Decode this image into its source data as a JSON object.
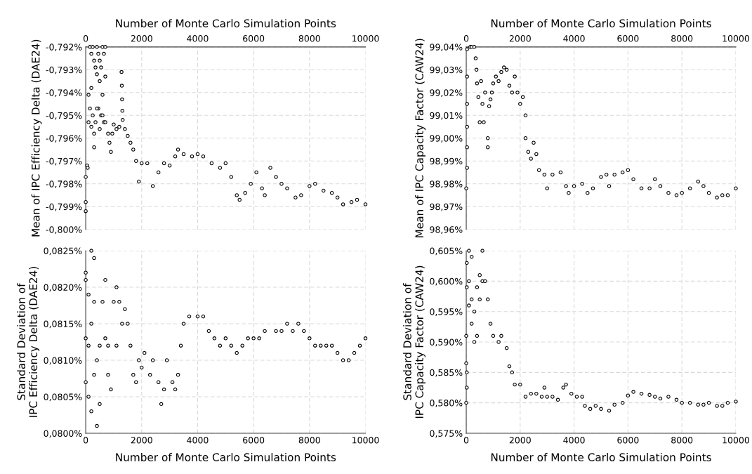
{
  "chart_data": [
    {
      "type": "scatter",
      "ylabel": "Mean of IPC Efficiency Delta (DAE24)",
      "xlabel": "Number of Monte Carlo Simulation Points",
      "xlim": [
        0,
        10000
      ],
      "xticks": [
        0,
        2000,
        4000,
        6000,
        8000,
        10000
      ],
      "ylim": [
        -0.8,
        -0.792
      ],
      "yticks": [
        {
          "value": -0.8,
          "label": "-0,800%"
        },
        {
          "value": -0.799,
          "label": "-0,799%"
        },
        {
          "value": -0.798,
          "label": "-0,798%"
        },
        {
          "value": -0.797,
          "label": "-0,797%"
        },
        {
          "value": -0.796,
          "label": "-0,796%"
        },
        {
          "value": -0.795,
          "label": "-0,795%"
        },
        {
          "value": -0.794,
          "label": "-0,794%"
        },
        {
          "value": -0.793,
          "label": "-0,793%"
        },
        {
          "value": -0.792,
          "label": "-0,792%"
        }
      ],
      "grid": true,
      "marker": "circle",
      "series": [
        {
          "color": "#000000",
          "x": [
            0,
            0,
            0,
            50,
            70,
            100,
            150,
            200,
            250,
            300,
            350,
            400,
            450,
            500,
            550,
            600,
            650,
            700,
            150,
            250,
            350,
            450,
            550,
            650,
            100,
            200,
            300,
            400,
            500,
            600,
            700,
            200,
            300,
            400,
            500,
            600,
            700,
            800,
            850,
            900,
            950,
            1000,
            1100,
            1200,
            1280,
            1290,
            1300,
            1310,
            1320,
            1400,
            1500,
            1600,
            1700,
            1800,
            1900,
            2000,
            2200,
            2400,
            2600,
            2800,
            3000,
            3200,
            3300,
            3500,
            3800,
            4000,
            4200,
            4500,
            4800,
            5000,
            5200,
            5400,
            5500,
            5700,
            5900,
            6100,
            6300,
            6400,
            6600,
            6800,
            7000,
            7200,
            7500,
            7700,
            8000,
            8200,
            8500,
            8800,
            9000,
            9200,
            9500,
            9700,
            10000
          ],
          "values": [
            -0.7988,
            -0.7992,
            -0.7977,
            -0.7972,
            -0.7973,
            -0.7953,
            -0.792,
            -0.7923,
            -0.792,
            -0.7926,
            -0.7929,
            -0.792,
            -0.7923,
            -0.7926,
            -0.7929,
            -0.792,
            -0.7923,
            -0.792,
            -0.7947,
            -0.795,
            -0.7953,
            -0.7947,
            -0.795,
            -0.7953,
            -0.7941,
            -0.7938,
            -0.7964,
            -0.7932,
            -0.7935,
            -0.7941,
            -0.7933,
            -0.7955,
            -0.7958,
            -0.7947,
            -0.7956,
            -0.795,
            -0.7953,
            -0.7958,
            -0.7962,
            -0.7966,
            -0.7958,
            -0.7954,
            -0.7956,
            -0.7955,
            -0.7931,
            -0.7937,
            -0.7943,
            -0.7948,
            -0.7952,
            -0.7956,
            -0.7959,
            -0.7962,
            -0.7965,
            -0.797,
            -0.7979,
            -0.7971,
            -0.7971,
            -0.7981,
            -0.7975,
            -0.7971,
            -0.7972,
            -0.7968,
            -0.7965,
            -0.7967,
            -0.7968,
            -0.7967,
            -0.7968,
            -0.7971,
            -0.7973,
            -0.7971,
            -0.7977,
            -0.7985,
            -0.7987,
            -0.7984,
            -0.798,
            -0.7975,
            -0.7982,
            -0.7985,
            -0.7973,
            -0.7977,
            -0.798,
            -0.7982,
            -0.7986,
            -0.7985,
            -0.7981,
            -0.798,
            -0.7983,
            -0.7984,
            -0.7986,
            -0.7989,
            -0.7988,
            -0.7987,
            -0.7989
          ]
        }
      ]
    },
    {
      "type": "scatter",
      "ylabel": "Mean of IPC Capacity Factor (CAW24)",
      "xlabel": "Number of Monte Carlo Simulation Points",
      "xlim": [
        0,
        10000
      ],
      "xticks": [
        0,
        2000,
        4000,
        6000,
        8000,
        10000
      ],
      "ylim": [
        98.96,
        99.04
      ],
      "yticks": [
        {
          "value": 98.96,
          "label": "98,96%"
        },
        {
          "value": 98.97,
          "label": "98,97%"
        },
        {
          "value": 98.98,
          "label": "98,98%"
        },
        {
          "value": 98.99,
          "label": "98,99%"
        },
        {
          "value": 99.0,
          "label": "99,00%"
        },
        {
          "value": 99.01,
          "label": "99,01%"
        },
        {
          "value": 99.02,
          "label": "99,02%"
        },
        {
          "value": 99.03,
          "label": "99,03%"
        },
        {
          "value": 99.04,
          "label": "99,04%"
        }
      ],
      "grid": true,
      "marker": "circle",
      "series": [
        {
          "color": "#000000",
          "x": [
            0,
            30,
            30,
            30,
            30,
            30,
            30,
            150,
            200,
            300,
            350,
            380,
            400,
            450,
            500,
            550,
            600,
            650,
            700,
            800,
            800,
            850,
            900,
            950,
            1000,
            1100,
            1200,
            1300,
            1400,
            1500,
            1600,
            1700,
            1800,
            1900,
            2000,
            2100,
            2200,
            2200,
            2300,
            2400,
            2500,
            2600,
            2700,
            2900,
            3000,
            3200,
            3500,
            3700,
            3800,
            4000,
            4300,
            4500,
            4700,
            5000,
            5200,
            5300,
            5500,
            5800,
            6000,
            6200,
            6500,
            6800,
            7000,
            7200,
            7500,
            7800,
            8000,
            8300,
            8600,
            8800,
            9000,
            9300,
            9500,
            9700,
            10000
          ],
          "values": [
            98.978,
            99.039,
            99.027,
            99.015,
            99.005,
            98.996,
            98.987,
            99.04,
            99.04,
            99.04,
            99.035,
            99.03,
            99.024,
            99.018,
            99.007,
            99.025,
            99.015,
            99.007,
            99.02,
            99.0,
            98.996,
            99.014,
            99.017,
            99.02,
            99.024,
            99.027,
            99.025,
            99.029,
            99.031,
            99.03,
            99.023,
            99.02,
            99.027,
            99.02,
            99.015,
            99.018,
            99.01,
            99.0,
            98.994,
            98.991,
            98.998,
            98.993,
            98.986,
            98.984,
            98.978,
            98.984,
            98.985,
            98.979,
            98.976,
            98.979,
            98.98,
            98.976,
            98.978,
            98.983,
            98.984,
            98.979,
            98.984,
            98.985,
            98.986,
            98.982,
            98.978,
            98.978,
            98.982,
            98.979,
            98.976,
            98.975,
            98.976,
            98.978,
            98.981,
            98.979,
            98.976,
            98.974,
            98.975,
            98.975,
            98.978
          ]
        }
      ]
    },
    {
      "type": "scatter",
      "ylabel": "Standard Deviation of\nIPC Efficiency Delta (DAE24)",
      "xlabel": "Number of Monte Carlo Simulation Points",
      "xlim": [
        0,
        10000
      ],
      "xticks": [
        0,
        2000,
        4000,
        6000,
        8000,
        10000
      ],
      "ylim": [
        0.08,
        0.0825
      ],
      "yticks": [
        {
          "value": 0.08,
          "label": "0,0800%"
        },
        {
          "value": 0.0805,
          "label": "0,0805%"
        },
        {
          "value": 0.081,
          "label": "0,0810%"
        },
        {
          "value": 0.0815,
          "label": "0,0815%"
        },
        {
          "value": 0.082,
          "label": "0,0820%"
        },
        {
          "value": 0.0825,
          "label": "0,0825%"
        }
      ],
      "grid": true,
      "marker": "circle",
      "series": [
        {
          "color": "#000000",
          "x": [
            0,
            0,
            0,
            0,
            100,
            100,
            100,
            200,
            200,
            200,
            300,
            300,
            300,
            400,
            400,
            500,
            500,
            600,
            700,
            700,
            800,
            800,
            900,
            1000,
            1100,
            1100,
            1200,
            1300,
            1400,
            1500,
            1600,
            1700,
            1800,
            1900,
            2000,
            2100,
            2300,
            2400,
            2600,
            2700,
            2800,
            2900,
            3100,
            3200,
            3300,
            3400,
            3500,
            3700,
            4000,
            4200,
            4400,
            4600,
            4800,
            5000,
            5200,
            5400,
            5600,
            5800,
            6000,
            6200,
            6400,
            6800,
            7000,
            7200,
            7400,
            7600,
            7800,
            8000,
            8200,
            8400,
            8600,
            8800,
            9000,
            9200,
            9400,
            9600,
            9800,
            10000
          ],
          "values": [
            0.0822,
            0.0821,
            0.0813,
            0.0807,
            0.0805,
            0.0812,
            0.0819,
            0.0825,
            0.0803,
            0.0815,
            0.0824,
            0.0818,
            0.0808,
            0.0801,
            0.081,
            0.0804,
            0.0812,
            0.0818,
            0.0821,
            0.0813,
            0.0812,
            0.0808,
            0.0806,
            0.0818,
            0.082,
            0.0812,
            0.0818,
            0.0815,
            0.0817,
            0.0815,
            0.0812,
            0.0808,
            0.0807,
            0.081,
            0.0809,
            0.0811,
            0.0808,
            0.081,
            0.0807,
            0.0804,
            0.0806,
            0.081,
            0.0807,
            0.0806,
            0.0808,
            0.0812,
            0.0815,
            0.0816,
            0.0816,
            0.0816,
            0.0814,
            0.0813,
            0.0812,
            0.0813,
            0.0812,
            0.0811,
            0.0812,
            0.0813,
            0.0813,
            0.0813,
            0.0814,
            0.0814,
            0.0814,
            0.0815,
            0.0814,
            0.0815,
            0.0814,
            0.0813,
            0.0812,
            0.0812,
            0.0812,
            0.0812,
            0.0811,
            0.081,
            0.081,
            0.0811,
            0.0812,
            0.0813
          ]
        }
      ]
    },
    {
      "type": "scatter",
      "ylabel": "Standard Deviation of\nIPC Capacity Factor (CAW24)",
      "xlabel": "Number of Monte Carlo Simulation Points",
      "xlim": [
        0,
        10000
      ],
      "xticks": [
        0,
        2000,
        4000,
        6000,
        8000,
        10000
      ],
      "ylim": [
        0.575,
        0.605
      ],
      "yticks": [
        {
          "value": 0.575,
          "label": "0,575%"
        },
        {
          "value": 0.58,
          "label": "0,580%"
        },
        {
          "value": 0.585,
          "label": "0,585%"
        },
        {
          "value": 0.59,
          "label": "0,590%"
        },
        {
          "value": 0.595,
          "label": "0,595%"
        },
        {
          "value": 0.6,
          "label": "0,600%"
        },
        {
          "value": 0.605,
          "label": "0,605%"
        }
      ],
      "grid": true,
      "marker": "circle",
      "series": [
        {
          "color": "#000000",
          "x": [
            0,
            0,
            0,
            20,
            20,
            20,
            20,
            100,
            100,
            100,
            200,
            200,
            200,
            300,
            300,
            400,
            400,
            500,
            500,
            600,
            600,
            700,
            800,
            900,
            1000,
            1200,
            1300,
            1500,
            1600,
            1700,
            1800,
            2000,
            2200,
            2400,
            2600,
            2800,
            2900,
            3000,
            3200,
            3400,
            3600,
            3700,
            3900,
            4100,
            4300,
            4400,
            4600,
            4800,
            5000,
            5300,
            5500,
            5800,
            6000,
            6200,
            6500,
            6800,
            7000,
            7200,
            7500,
            7800,
            8000,
            8300,
            8600,
            8800,
            9000,
            9300,
            9500,
            9700,
            10000
          ],
          "values": [
            0.58,
            0.5865,
            0.591,
            0.5825,
            0.585,
            0.599,
            0.603,
            0.605,
            0.6,
            0.596,
            0.604,
            0.597,
            0.593,
            0.59,
            0.595,
            0.591,
            0.599,
            0.601,
            0.597,
            0.605,
            0.6,
            0.6,
            0.597,
            0.593,
            0.591,
            0.59,
            0.591,
            0.589,
            0.586,
            0.585,
            0.583,
            0.583,
            0.581,
            0.5815,
            0.5815,
            0.581,
            0.5825,
            0.581,
            0.581,
            0.5805,
            0.5825,
            0.583,
            0.5815,
            0.581,
            0.581,
            0.5795,
            0.579,
            0.5795,
            0.579,
            0.5787,
            0.5797,
            0.58,
            0.5812,
            0.5818,
            0.5815,
            0.5813,
            0.581,
            0.5807,
            0.581,
            0.5805,
            0.58,
            0.58,
            0.5797,
            0.5797,
            0.58,
            0.5795,
            0.5795,
            0.58,
            0.5802
          ]
        }
      ]
    }
  ]
}
